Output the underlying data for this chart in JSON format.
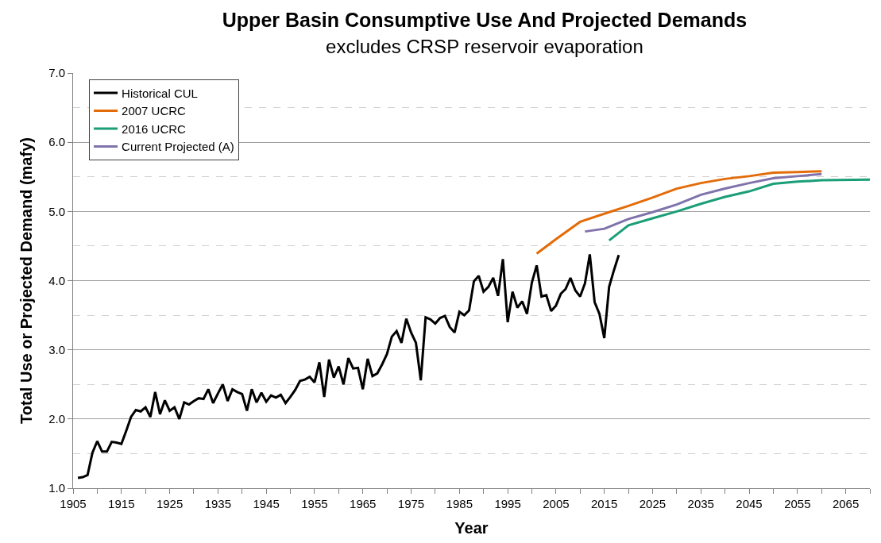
{
  "chart_data": {
    "type": "line",
    "title": "Upper Basin Consumptive Use And Projected Demands",
    "subtitle": "excludes CRSP reservoir evaporation",
    "xlabel": "Year",
    "ylabel": "Total Use or Projected Demand (mafy)",
    "xlim": [
      1905,
      2070
    ],
    "ylim": [
      1.0,
      7.0
    ],
    "xticks": [
      1905,
      {
        "value": 1910,
        "label": null
      },
      1915,
      {
        "value": 1920,
        "label": null
      },
      1925,
      {
        "value": 1930,
        "label": null
      },
      1935,
      {
        "value": 1940,
        "label": null
      },
      1945,
      {
        "value": 1950,
        "label": null
      },
      1955,
      {
        "value": 1960,
        "label": null
      },
      1965,
      {
        "value": 1970,
        "label": null
      },
      1975,
      {
        "value": 1980,
        "label": null
      },
      1985,
      {
        "value": 1990,
        "label": null
      },
      1995,
      {
        "value": 2000,
        "label": null
      },
      2005,
      {
        "value": 2010,
        "label": null
      },
      2015,
      {
        "value": 2020,
        "label": null
      },
      2025,
      {
        "value": 2030,
        "label": null
      },
      2035,
      {
        "value": 2040,
        "label": null
      },
      2045,
      {
        "value": 2050,
        "label": null
      },
      2055,
      {
        "value": 2060,
        "label": null
      },
      2065,
      {
        "value": 2070,
        "label": null
      }
    ],
    "yticks": [
      {
        "value": 1.0,
        "label": "1.0"
      },
      {
        "value": 2.0,
        "label": "2.0"
      },
      {
        "value": 3.0,
        "label": "3.0"
      },
      {
        "value": 4.0,
        "label": "4.0"
      },
      {
        "value": 5.0,
        "label": "5.0"
      },
      {
        "value": 6.0,
        "label": "6.0"
      },
      {
        "value": 7.0,
        "label": "7.0"
      }
    ],
    "grid": "y",
    "legend": "top left",
    "marker": "none",
    "line_style": "solid",
    "series": [
      {
        "name": "Historical CUL",
        "color": "#000000",
        "x": [
          1906,
          1907,
          1908,
          1909,
          1910,
          1911,
          1912,
          1913,
          1914,
          1915,
          1916,
          1917,
          1918,
          1919,
          1920,
          1921,
          1922,
          1923,
          1924,
          1925,
          1926,
          1927,
          1928,
          1929,
          1930,
          1931,
          1932,
          1933,
          1934,
          1935,
          1936,
          1937,
          1938,
          1939,
          1940,
          1941,
          1942,
          1943,
          1944,
          1945,
          1946,
          1947,
          1948,
          1949,
          1950,
          1951,
          1952,
          1953,
          1954,
          1955,
          1956,
          1957,
          1958,
          1959,
          1960,
          1961,
          1962,
          1963,
          1964,
          1965,
          1966,
          1967,
          1968,
          1969,
          1970,
          1971,
          1972,
          1973,
          1974,
          1975,
          1976,
          1977,
          1978,
          1979,
          1980,
          1981,
          1982,
          1983,
          1984,
          1985,
          1986,
          1987,
          1988,
          1989,
          1990,
          1991,
          1992,
          1993,
          1994,
          1995,
          1996,
          1997,
          1998,
          1999,
          2000,
          2001,
          2002,
          2003,
          2004,
          2005,
          2006,
          2007,
          2008,
          2009,
          2010,
          2011,
          2012,
          2013,
          2014,
          2015,
          2016,
          2017,
          2018
        ],
        "values": [
          1.15,
          1.16,
          1.19,
          1.51,
          1.68,
          1.53,
          1.53,
          1.67,
          1.66,
          1.64,
          1.83,
          2.03,
          2.13,
          2.11,
          2.17,
          2.03,
          2.39,
          2.07,
          2.27,
          2.12,
          2.17,
          2.0,
          2.24,
          2.21,
          2.26,
          2.3,
          2.29,
          2.43,
          2.23,
          2.37,
          2.5,
          2.26,
          2.43,
          2.39,
          2.36,
          2.12,
          2.43,
          2.24,
          2.38,
          2.25,
          2.34,
          2.31,
          2.35,
          2.23,
          2.32,
          2.42,
          2.55,
          2.57,
          2.61,
          2.53,
          2.82,
          2.32,
          2.86,
          2.6,
          2.76,
          2.5,
          2.88,
          2.73,
          2.74,
          2.43,
          2.87,
          2.62,
          2.66,
          2.79,
          2.94,
          3.19,
          3.27,
          3.1,
          3.45,
          3.25,
          3.1,
          2.56,
          3.47,
          3.44,
          3.38,
          3.46,
          3.49,
          3.33,
          3.25,
          3.55,
          3.5,
          3.57,
          3.99,
          4.07,
          3.84,
          3.91,
          4.04,
          3.78,
          4.31,
          3.4,
          3.84,
          3.61,
          3.7,
          3.52,
          3.97,
          4.22,
          3.77,
          3.79,
          3.56,
          3.64,
          3.81,
          3.88,
          4.04,
          3.86,
          3.77,
          3.96,
          4.38,
          3.69,
          3.52,
          3.17,
          3.91,
          4.15,
          4.37
        ]
      },
      {
        "name": "2007 UCRC",
        "color": "#e36c09",
        "x": [
          2001,
          2005,
          2010,
          2016,
          2020,
          2025,
          2030,
          2035,
          2040,
          2045,
          2050,
          2055,
          2060
        ],
        "values": [
          4.39,
          4.6,
          4.85,
          4.99,
          5.08,
          5.2,
          5.33,
          5.41,
          5.47,
          5.51,
          5.56,
          5.57,
          5.58
        ]
      },
      {
        "name": "2016 UCRC",
        "color": "#1a9e77",
        "x": [
          2016,
          2020,
          2025,
          2030,
          2035,
          2040,
          2045,
          2050,
          2055,
          2060,
          2070
        ],
        "values": [
          4.58,
          4.8,
          4.9,
          5.0,
          5.11,
          5.21,
          5.29,
          5.4,
          5.43,
          5.45,
          5.46
        ]
      },
      {
        "name": "Current Projected (A)",
        "color": "#8073ac",
        "x": [
          2011,
          2015,
          2020,
          2025,
          2030,
          2035,
          2040,
          2045,
          2050,
          2055,
          2060
        ],
        "values": [
          4.71,
          4.75,
          4.89,
          4.99,
          5.1,
          5.24,
          5.33,
          5.41,
          5.48,
          5.51,
          5.54
        ]
      }
    ]
  }
}
